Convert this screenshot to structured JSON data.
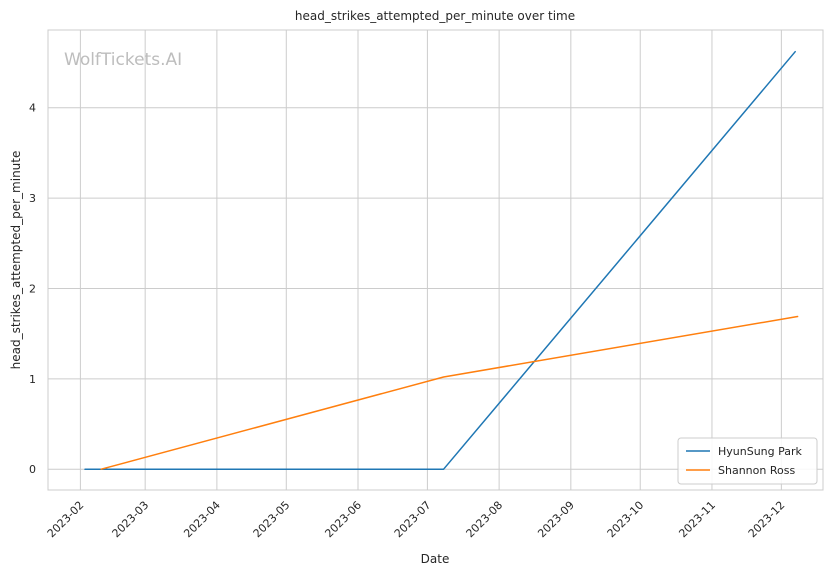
{
  "chart_data": {
    "type": "line",
    "title": "head_strikes_attempted_per_minute over time",
    "xlabel": "Date",
    "ylabel": "head_strikes_attempted_per_minute",
    "watermark": "WolfTickets.AI",
    "x_ticks": [
      "2023-02",
      "2023-03",
      "2023-04",
      "2023-05",
      "2023-06",
      "2023-07",
      "2023-08",
      "2023-09",
      "2023-10",
      "2023-11",
      "2023-12"
    ],
    "y_ticks": [
      "0",
      "1",
      "2",
      "3",
      "4"
    ],
    "xlim": [
      "2023-01-18",
      "2023-12-19"
    ],
    "ylim": [
      -0.23,
      4.86
    ],
    "grid": true,
    "legend_position": "bottom-right",
    "series": [
      {
        "name": "HyunSung Park",
        "color": "#1f77b4",
        "points": [
          {
            "x": "2023-02-03",
            "y": 0
          },
          {
            "x": "2023-07-08",
            "y": 0
          },
          {
            "x": "2023-12-07",
            "y": 4.62
          }
        ]
      },
      {
        "name": "Shannon Ross",
        "color": "#ff7f0e",
        "points": [
          {
            "x": "2023-02-10",
            "y": 0
          },
          {
            "x": "2023-07-08",
            "y": 1.02
          },
          {
            "x": "2023-12-08",
            "y": 1.69
          }
        ]
      }
    ]
  }
}
